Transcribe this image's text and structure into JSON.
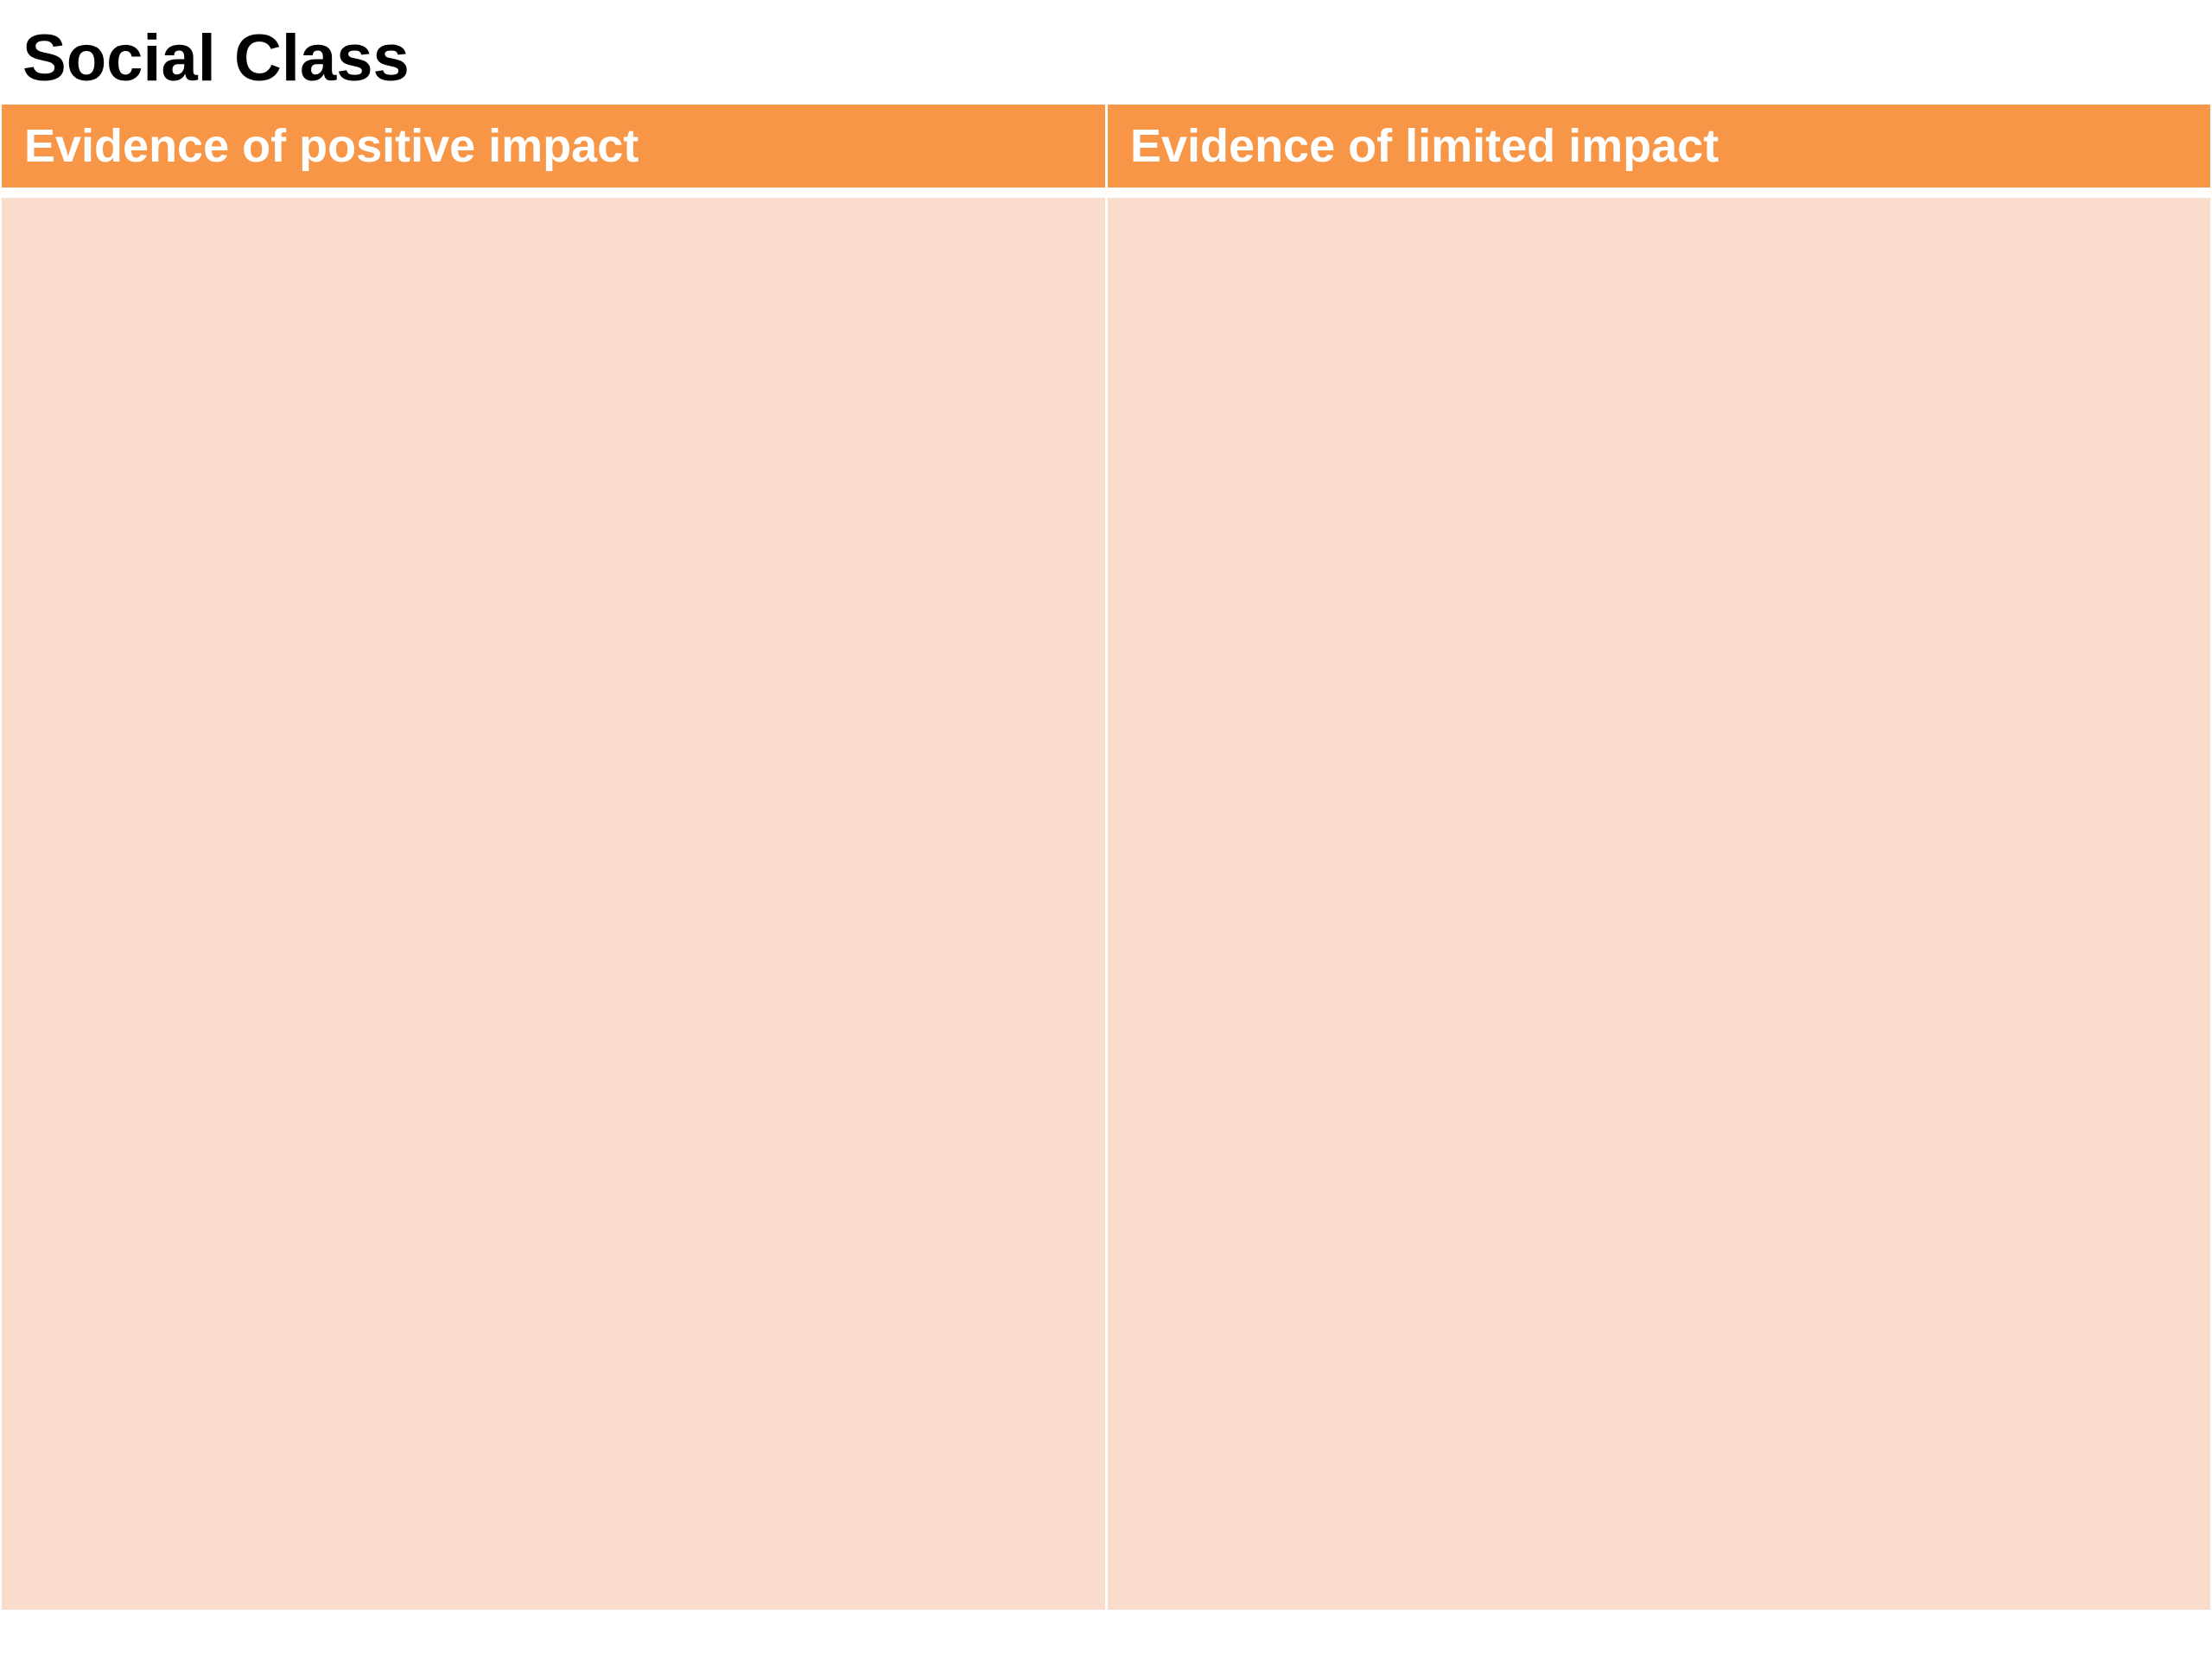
{
  "page": {
    "title": "Social Class"
  },
  "table": {
    "columns": [
      {
        "header": "Evidence of positive impact",
        "content": ""
      },
      {
        "header": "Evidence of limited impact",
        "content": ""
      }
    ]
  },
  "colors": {
    "header_background": "#f79646",
    "header_text": "#ffffff",
    "cell_background": "#f9dccc",
    "title_text": "#000000"
  }
}
